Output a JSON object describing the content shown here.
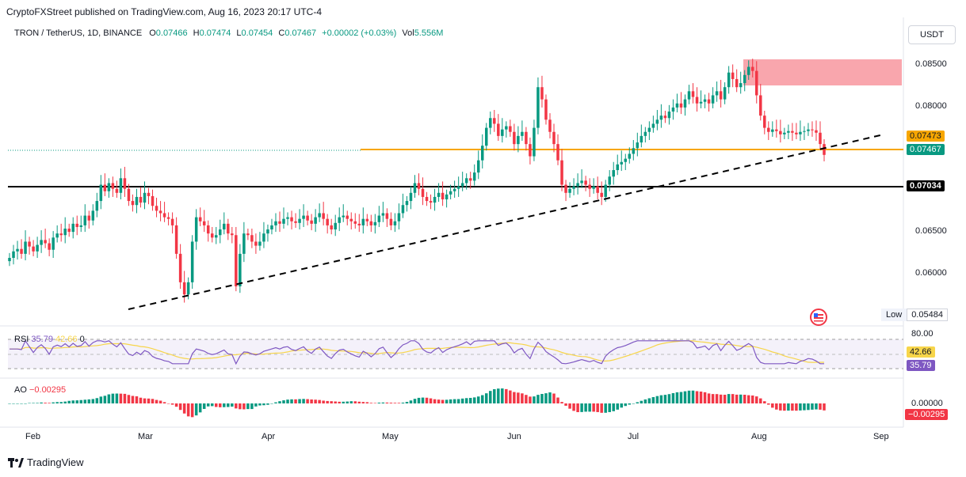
{
  "header": {
    "publisher": "CryptoFXStreet published on TradingView.com, Aug 16, 2023 20:17 UTC-4"
  },
  "legend": {
    "symbol": "TRON / TetherUS, 1D, BINANCE",
    "o_label": "O",
    "o": "0.07466",
    "h_label": "H",
    "h": "0.07474",
    "l_label": "L",
    "l": "0.07454",
    "c_label": "C",
    "c": "0.07467",
    "change": "+0.00002 (+0.03%)",
    "vol_label": "Vol",
    "vol": "5.556M"
  },
  "currency_button": "USDT",
  "price_tags": {
    "orange": "0.07473",
    "green": "0.07467",
    "black": "0.07034"
  },
  "low_box": {
    "label": "Low",
    "value": "0.05484"
  },
  "rsi": {
    "label": "RSI",
    "value": "35.79",
    "ma": "42.66",
    "extra": "0",
    "level_top": "80.00"
  },
  "ao": {
    "label": "AO",
    "value": "−0.00295",
    "zero": "0.00000",
    "tag": "−0.00295"
  },
  "footer": {
    "brand": "TradingView"
  },
  "colors": {
    "up": "#089981",
    "down": "#f23645",
    "orange": "#f7a600",
    "rsi_line": "#7e57c2",
    "rsi_ma": "#f7d54a",
    "zone": "#f9a6ad"
  },
  "chart_data": {
    "type": "candlestick",
    "title": "TRON / TetherUS, 1D, BINANCE",
    "x_ticks": [
      "Feb",
      "Mar",
      "Apr",
      "May",
      "Jun",
      "Jul",
      "Aug",
      "Sep"
    ],
    "y_ticks": [
      "0.08500",
      "0.08000",
      "0.06500",
      "0.06000"
    ],
    "ylim": [
      0.0548,
      0.091
    ],
    "horizontal_levels": [
      {
        "name": "support",
        "value": 0.07034
      },
      {
        "name": "current",
        "value": 0.07467
      }
    ],
    "resistance_zone": [
      0.0825,
      0.0856
    ],
    "trendline": {
      "from": [
        "Mar 1",
        0.0558
      ],
      "to": [
        "Aug 30",
        0.0766
      ]
    },
    "closes": [
      0.062,
      0.0628,
      0.0631,
      0.0625,
      0.064,
      0.0634,
      0.0628,
      0.0636,
      0.0642,
      0.0638,
      0.063,
      0.0645,
      0.065,
      0.0648,
      0.0656,
      0.0652,
      0.0662,
      0.0658,
      0.066,
      0.0672,
      0.0666,
      0.0678,
      0.069,
      0.071,
      0.0702,
      0.0712,
      0.0705,
      0.07,
      0.0718,
      0.0705,
      0.069,
      0.0685,
      0.0695,
      0.0688,
      0.07,
      0.0696,
      0.0684,
      0.0678,
      0.0675,
      0.067,
      0.0668,
      0.066,
      0.0625,
      0.059,
      0.0575,
      0.059,
      0.064,
      0.067,
      0.0665,
      0.066,
      0.065,
      0.0645,
      0.0648,
      0.0655,
      0.0662,
      0.065,
      0.0648,
      0.0585,
      0.0625,
      0.065,
      0.0648,
      0.064,
      0.0635,
      0.064,
      0.065,
      0.0655,
      0.066,
      0.0665,
      0.0662,
      0.0668,
      0.067,
      0.0665,
      0.0663,
      0.0668,
      0.0672,
      0.0666,
      0.0662,
      0.067,
      0.0675,
      0.0668,
      0.066,
      0.0655,
      0.0663,
      0.067,
      0.0672,
      0.0668,
      0.0665,
      0.0662,
      0.066,
      0.0668,
      0.0665,
      0.066,
      0.0664,
      0.0672,
      0.0675,
      0.0668,
      0.066,
      0.0665,
      0.0675,
      0.0685,
      0.069,
      0.07,
      0.0712,
      0.0705,
      0.0695,
      0.069,
      0.0688,
      0.0695,
      0.07,
      0.0692,
      0.0698,
      0.0702,
      0.0705,
      0.0708,
      0.0712,
      0.0718,
      0.0715,
      0.0725,
      0.074,
      0.0758,
      0.078,
      0.0792,
      0.0785,
      0.077,
      0.0778,
      0.0782,
      0.0775,
      0.076,
      0.077,
      0.0775,
      0.076,
      0.0745,
      0.078,
      0.083,
      0.0815,
      0.079,
      0.0775,
      0.076,
      0.074,
      0.071,
      0.07,
      0.0705,
      0.0708,
      0.0712,
      0.0715,
      0.071,
      0.0705,
      0.0708,
      0.07,
      0.0695,
      0.071,
      0.072,
      0.0728,
      0.0735,
      0.0738,
      0.0742,
      0.0748,
      0.0755,
      0.0762,
      0.077,
      0.0775,
      0.078,
      0.0785,
      0.079,
      0.0795,
      0.0792,
      0.08,
      0.0805,
      0.081,
      0.0805,
      0.0815,
      0.0825,
      0.0818,
      0.081,
      0.0812,
      0.0815,
      0.081,
      0.082,
      0.0825,
      0.0815,
      0.083,
      0.0848,
      0.084,
      0.083,
      0.0835,
      0.0845,
      0.0855,
      0.085,
      0.082,
      0.0795,
      0.078,
      0.0775,
      0.0778,
      0.0776,
      0.0772,
      0.0774,
      0.0776,
      0.0774,
      0.0772,
      0.0775,
      0.0776,
      0.0778,
      0.0777,
      0.0774,
      0.076,
      0.07467
    ]
  }
}
